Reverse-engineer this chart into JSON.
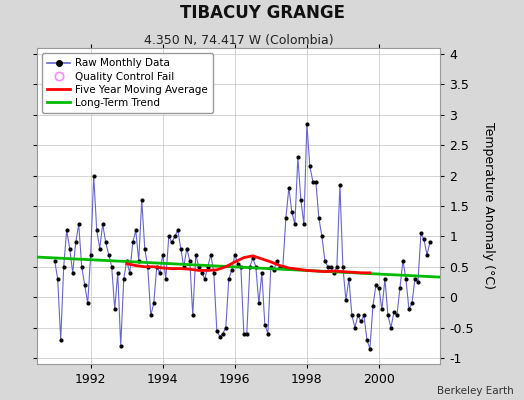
{
  "title": "TIBACUY GRANGE",
  "subtitle": "4.350 N, 74.417 W (Colombia)",
  "ylabel": "Temperature Anomaly (°C)",
  "credit": "Berkeley Earth",
  "ylim": [
    -1.1,
    4.1
  ],
  "xlim": [
    1990.5,
    2001.7
  ],
  "xticks": [
    1992,
    1994,
    1996,
    1998,
    2000
  ],
  "yticks": [
    -1,
    -0.5,
    0,
    0.5,
    1,
    1.5,
    2,
    2.5,
    3,
    3.5,
    4
  ],
  "ytick_labels": [
    "-1",
    "-0.5",
    "0",
    "0.5",
    "1",
    "1.5",
    "2",
    "2.5",
    "3",
    "3.5",
    "4"
  ],
  "raw_color": "#6666cc",
  "raw_marker_color": "#000000",
  "moving_avg_color": "#ff0000",
  "trend_color": "#00bb00",
  "bg_color": "#ffffff",
  "outer_bg": "#d8d8d8",
  "grid_color": "#cccccc",
  "raw_data_x": [
    1991.0,
    1991.083,
    1991.167,
    1991.25,
    1991.333,
    1991.417,
    1991.5,
    1991.583,
    1991.667,
    1991.75,
    1991.833,
    1991.917,
    1992.0,
    1992.083,
    1992.167,
    1992.25,
    1992.333,
    1992.417,
    1992.5,
    1992.583,
    1992.667,
    1992.75,
    1992.833,
    1992.917,
    1993.0,
    1993.083,
    1993.167,
    1993.25,
    1993.333,
    1993.417,
    1993.5,
    1993.583,
    1993.667,
    1993.75,
    1993.833,
    1993.917,
    1994.0,
    1994.083,
    1994.167,
    1994.25,
    1994.333,
    1994.417,
    1994.5,
    1994.583,
    1994.667,
    1994.75,
    1994.833,
    1994.917,
    1995.0,
    1995.083,
    1995.167,
    1995.25,
    1995.333,
    1995.417,
    1995.5,
    1995.583,
    1995.667,
    1995.75,
    1995.833,
    1995.917,
    1996.0,
    1996.083,
    1996.167,
    1996.25,
    1996.333,
    1996.417,
    1996.5,
    1996.583,
    1996.667,
    1996.75,
    1996.833,
    1996.917,
    1997.0,
    1997.083,
    1997.167,
    1997.25,
    1997.333,
    1997.417,
    1997.5,
    1997.583,
    1997.667,
    1997.75,
    1997.833,
    1997.917,
    1998.0,
    1998.083,
    1998.167,
    1998.25,
    1998.333,
    1998.417,
    1998.5,
    1998.583,
    1998.667,
    1998.75,
    1998.833,
    1998.917,
    1999.0,
    1999.083,
    1999.167,
    1999.25,
    1999.333,
    1999.417,
    1999.5,
    1999.583,
    1999.667,
    1999.75,
    1999.833,
    1999.917,
    2000.0,
    2000.083,
    2000.167,
    2000.25,
    2000.333,
    2000.417,
    2000.5,
    2000.583,
    2000.667,
    2000.75,
    2000.833,
    2000.917,
    2001.0,
    2001.083,
    2001.167,
    2001.25,
    2001.333,
    2001.417
  ],
  "raw_data_y": [
    0.6,
    0.3,
    -0.7,
    0.5,
    1.1,
    0.8,
    0.4,
    0.9,
    1.2,
    0.5,
    0.2,
    -0.1,
    0.7,
    2.0,
    1.1,
    0.8,
    1.2,
    0.9,
    0.7,
    0.5,
    -0.2,
    0.4,
    -0.8,
    0.3,
    0.6,
    0.4,
    0.9,
    1.1,
    0.6,
    1.6,
    0.8,
    0.5,
    -0.3,
    -0.1,
    0.5,
    0.4,
    0.7,
    0.3,
    1.0,
    0.9,
    1.0,
    1.1,
    0.8,
    0.5,
    0.8,
    0.6,
    -0.3,
    0.7,
    0.5,
    0.4,
    0.3,
    0.5,
    0.7,
    0.4,
    -0.55,
    -0.65,
    -0.6,
    -0.5,
    0.3,
    0.45,
    0.7,
    0.55,
    0.5,
    -0.6,
    -0.6,
    0.5,
    0.65,
    0.5,
    -0.1,
    0.4,
    -0.45,
    -0.6,
    0.5,
    0.45,
    0.6,
    0.5,
    0.5,
    1.3,
    1.8,
    1.4,
    1.2,
    2.3,
    1.6,
    1.2,
    2.85,
    2.15,
    1.9,
    1.9,
    1.3,
    1.0,
    0.6,
    0.5,
    0.5,
    0.4,
    0.5,
    1.85,
    0.5,
    -0.05,
    0.3,
    -0.3,
    -0.5,
    -0.3,
    -0.4,
    -0.3,
    -0.7,
    -0.85,
    -0.15,
    0.2,
    0.15,
    -0.2,
    0.3,
    -0.3,
    -0.5,
    -0.25,
    -0.3,
    0.15,
    0.6,
    0.3,
    -0.2,
    -0.1,
    0.3,
    0.25,
    1.05,
    0.95,
    0.7,
    0.9
  ],
  "moving_avg_x": [
    1993.0,
    1993.25,
    1993.5,
    1993.75,
    1994.0,
    1994.25,
    1994.5,
    1994.75,
    1995.0,
    1995.25,
    1995.5,
    1995.75,
    1996.0,
    1996.25,
    1996.5,
    1996.75,
    1997.0,
    1997.25,
    1997.5,
    1997.75,
    1998.0,
    1998.25,
    1998.5,
    1998.75,
    1999.0,
    1999.25,
    1999.5,
    1999.75
  ],
  "moving_avg_y": [
    0.55,
    0.52,
    0.5,
    0.5,
    0.48,
    0.47,
    0.47,
    0.46,
    0.44,
    0.44,
    0.45,
    0.5,
    0.58,
    0.65,
    0.68,
    0.63,
    0.58,
    0.52,
    0.48,
    0.46,
    0.44,
    0.43,
    0.42,
    0.43,
    0.42,
    0.41,
    0.4,
    0.4
  ],
  "trend_x": [
    1990.5,
    2001.7
  ],
  "trend_y": [
    0.66,
    0.33
  ]
}
